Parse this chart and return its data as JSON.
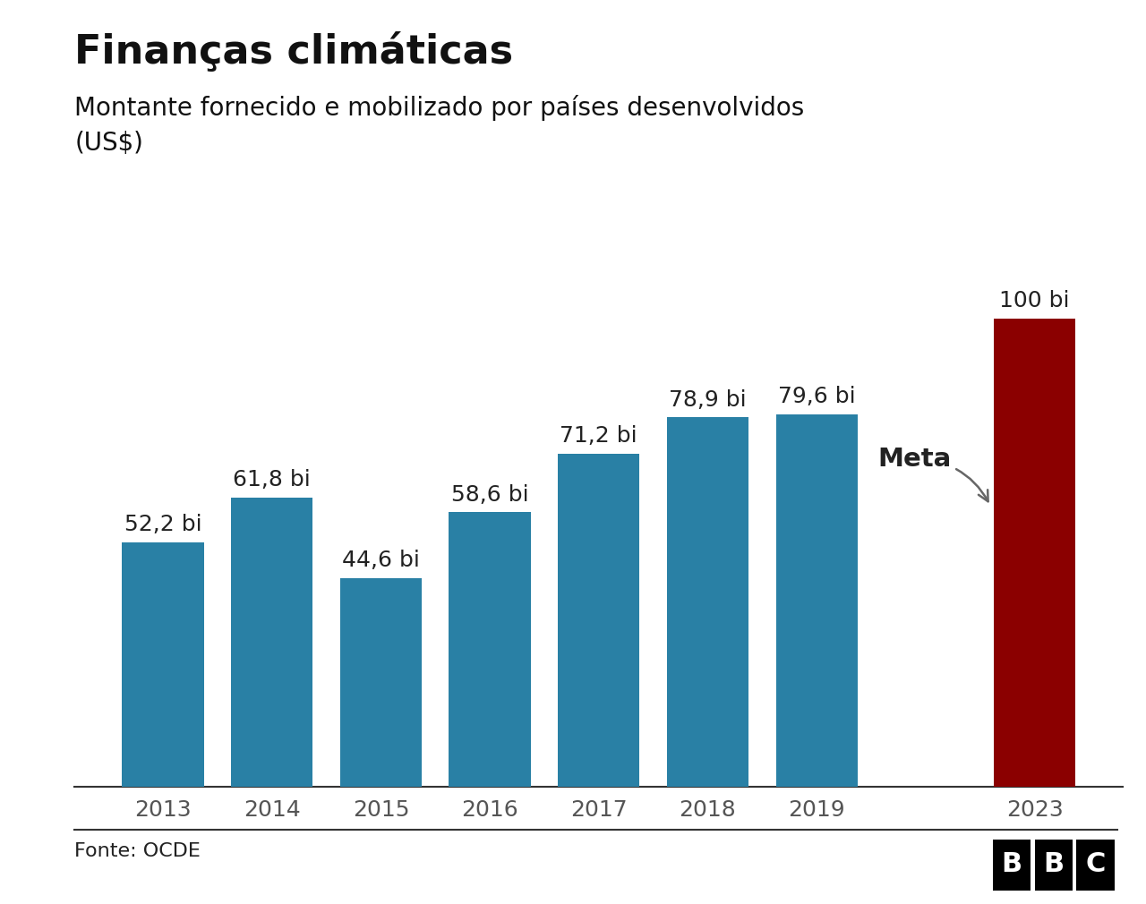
{
  "title": "Finanças climáticas",
  "subtitle": "Montante fornecido e mobilizado por países desenvolvidos\n(US$)",
  "categories": [
    "2013",
    "2014",
    "2015",
    "2016",
    "2017",
    "2018",
    "2019",
    "2023"
  ],
  "values": [
    52.2,
    61.8,
    44.6,
    58.6,
    71.2,
    78.9,
    79.6,
    100
  ],
  "labels": [
    "52,2 bi",
    "61,8 bi",
    "44,6 bi",
    "58,6 bi",
    "71,2 bi",
    "78,9 bi",
    "79,6 bi",
    "100 bi"
  ],
  "bar_colors": [
    "#2980a5",
    "#2980a5",
    "#2980a5",
    "#2980a5",
    "#2980a5",
    "#2980a5",
    "#2980a5",
    "#8b0000"
  ],
  "meta_label": "Meta",
  "fonte_label": "Fonte: OCDE",
  "background_color": "#ffffff",
  "title_fontsize": 32,
  "subtitle_fontsize": 20,
  "label_fontsize": 18,
  "tick_fontsize": 18,
  "ylim": [
    0,
    115
  ]
}
